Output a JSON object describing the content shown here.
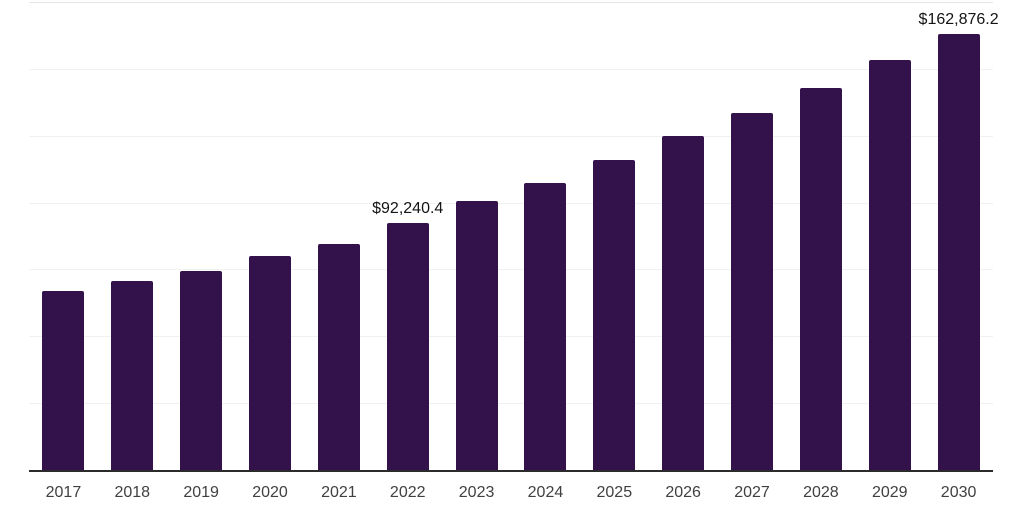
{
  "chart_data": {
    "type": "bar",
    "title": "",
    "xlabel": "",
    "ylabel": "",
    "categories": [
      "2017",
      "2018",
      "2019",
      "2020",
      "2021",
      "2022",
      "2023",
      "2024",
      "2025",
      "2026",
      "2027",
      "2028",
      "2029",
      "2030"
    ],
    "values": [
      66800,
      70500,
      74600,
      79900,
      84700,
      92240.4,
      100600,
      107300,
      116000,
      125000,
      133500,
      142700,
      153400,
      162876.2
    ],
    "annotations": [
      {
        "category": "2022",
        "text": "$92,240.4"
      },
      {
        "category": "2030",
        "text": "$162,876.2"
      }
    ],
    "ylim": [
      0,
      175000
    ],
    "gridline_step": 25000,
    "gridline_count": 7,
    "grid": "horizontal",
    "y_axis_ticks_visible": false,
    "legend": "none",
    "bar_color": "#33124B",
    "axis_line_color": "#2b2b2b",
    "gridline_color": "#f1f1f1",
    "tick_label_color": "#404040",
    "annotation_color": "#141414"
  }
}
